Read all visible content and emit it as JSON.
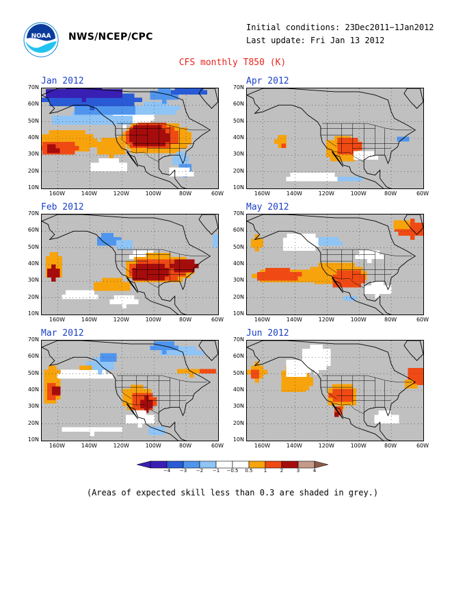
{
  "header": {
    "agency": "NWS/NCEP/CPC",
    "initial_conditions": "Initial conditions: 23Dec2011−1Jan2012",
    "last_update": "Last update: Fri Jan 13 2012",
    "title": "CFS monthly T850 (K)"
  },
  "logo": {
    "icon": "noaa-logo-icon",
    "text": "NOAA"
  },
  "axes": {
    "lat_labels": [
      "70N",
      "60N",
      "50N",
      "40N",
      "30N",
      "20N",
      "10N"
    ],
    "lon_labels": [
      "160W",
      "140W",
      "120W",
      "100W",
      "80W",
      "60W"
    ]
  },
  "panels": [
    {
      "id": "jan",
      "title": "Jan 2012"
    },
    {
      "id": "apr",
      "title": "Apr 2012"
    },
    {
      "id": "feb",
      "title": "Feb 2012"
    },
    {
      "id": "may",
      "title": "May 2012"
    },
    {
      "id": "mar",
      "title": "Mar 2012"
    },
    {
      "id": "jun",
      "title": "Jun 2012"
    }
  ],
  "colorbar": {
    "labels": [
      "−4",
      "−3",
      "−2",
      "−1",
      "−0.5",
      "0.5",
      "1",
      "2",
      "3",
      "4"
    ],
    "colors": [
      "#3a1fb4",
      "#2a5bd6",
      "#4f95ee",
      "#8fc4f6",
      "#ffffff",
      "#ffffff",
      "#f7a30c",
      "#f04a14",
      "#a70c0c",
      "#c49a8a"
    ],
    "skill_mask_color": "#c0c0c0"
  },
  "footnote": "(Areas of expected skill less than 0.3 are shaded in grey.)"
}
